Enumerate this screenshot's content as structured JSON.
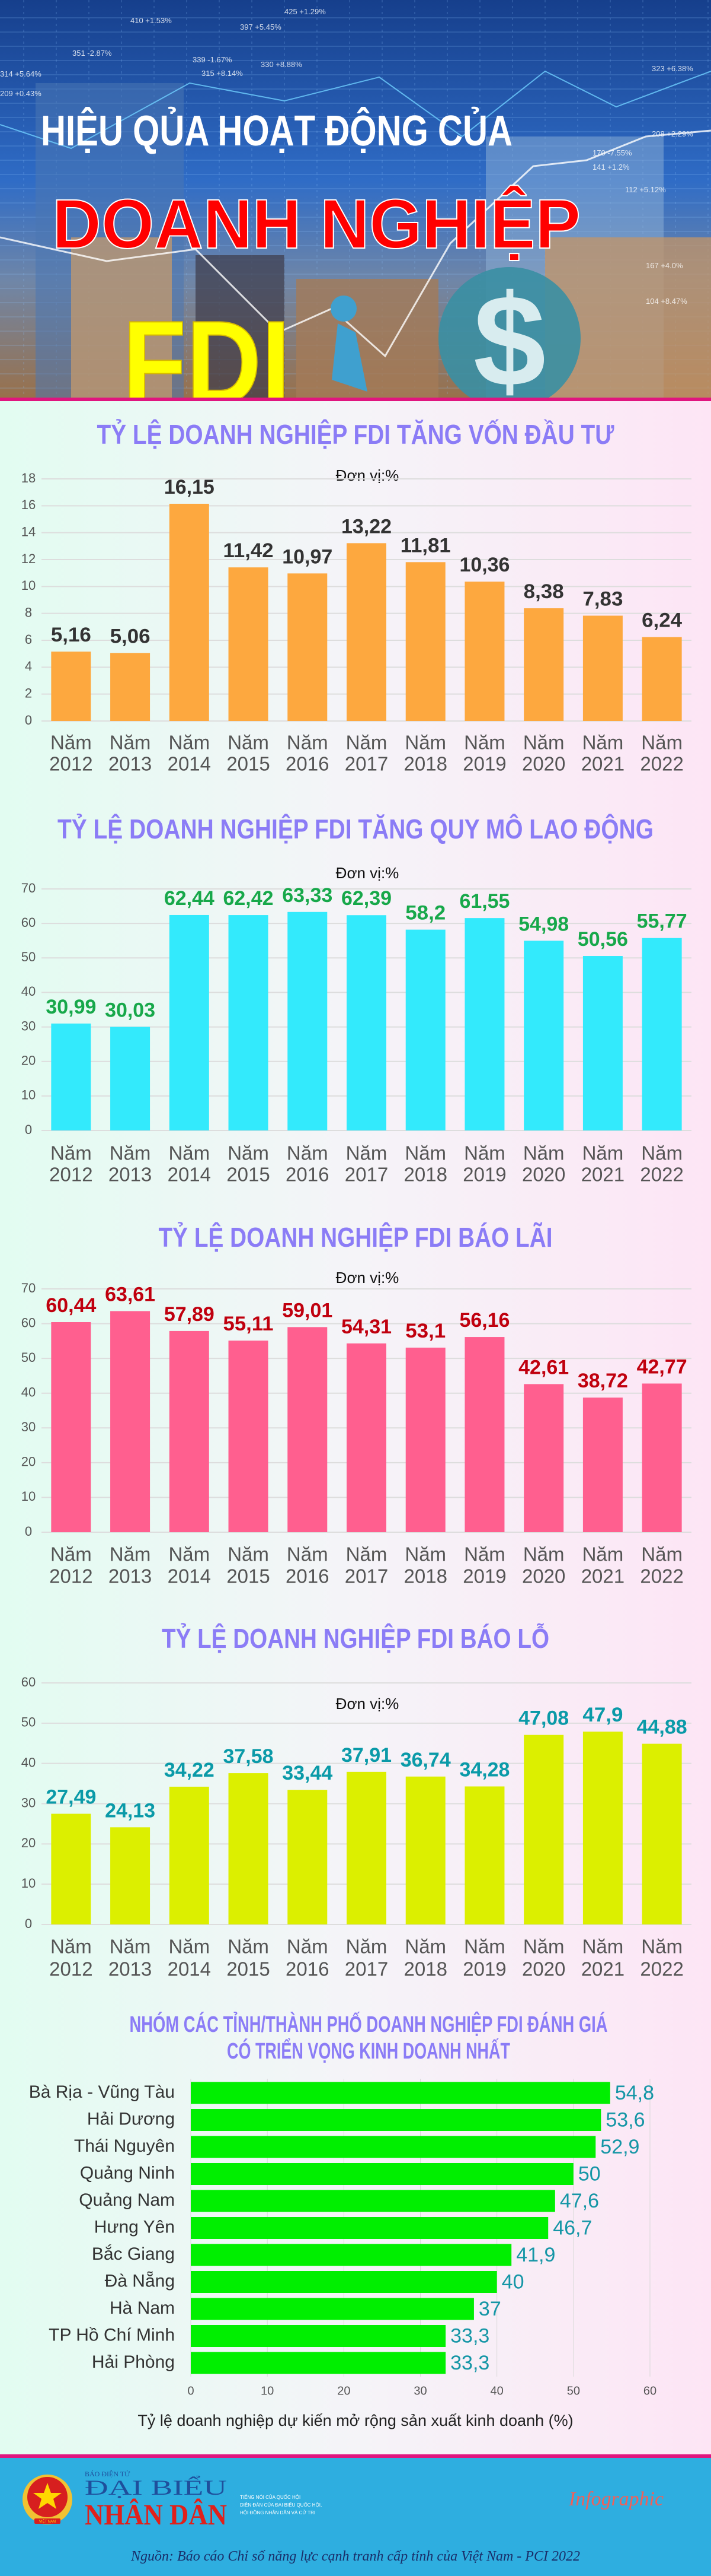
{
  "header": {
    "line1": "HIỆU QỦA HOẠT ĐỘNG CỦA",
    "line2": "DOANH NGHIỆP",
    "line3": "FDI",
    "ticker_labels": [
      "425 +1.29%",
      "410 +1.53%",
      "397 +5.45%",
      "351 -2.87%",
      "339 -1.67%",
      "330 +8.88%",
      "315 +8.14%",
      "314 +5.64%",
      "323 +6.38%",
      "209 +0.43%",
      "208 +2.29%",
      "167 +4.0%",
      "170 -7.55%",
      "141 +1.2%",
      "104 +8.47%",
      "112 +5.12%"
    ]
  },
  "chart_data": [
    {
      "type": "bar",
      "title": "TỶ LỆ DOANH NGHIỆP FDI TĂNG VỐN ĐẦU TƯ",
      "unit_note": "Đơn vị:%",
      "categories": [
        [
          "Năm",
          "2012"
        ],
        [
          "Năm",
          "2013"
        ],
        [
          "Năm",
          "2014"
        ],
        [
          "Năm",
          "2015"
        ],
        [
          "Năm",
          "2016"
        ],
        [
          "Năm",
          "2017"
        ],
        [
          "Năm",
          "2018"
        ],
        [
          "Năm",
          "2019"
        ],
        [
          "Năm",
          "2020"
        ],
        [
          "Năm",
          "2021"
        ],
        [
          "Năm",
          "2022"
        ]
      ],
      "values": [
        5.16,
        5.06,
        16.15,
        11.42,
        10.97,
        13.22,
        11.81,
        10.36,
        8.38,
        7.83,
        6.24
      ],
      "value_labels": [
        "5,16",
        "5,06",
        "16,15",
        "11,42",
        "10,97",
        "13,22",
        "11,81",
        "10,36",
        "8,38",
        "7,83",
        "6,24"
      ],
      "ylim": [
        0,
        18
      ],
      "yticks": [
        0,
        2,
        4,
        6,
        8,
        10,
        12,
        14,
        16,
        18
      ],
      "grid": true,
      "bar_color": "#fda83f",
      "label_color": "#333333"
    },
    {
      "type": "bar",
      "title": "TỶ LỆ DOANH NGHIỆP FDI TĂNG QUY MÔ LAO ĐỘNG",
      "unit_note": "Đơn vị:%",
      "categories": [
        [
          "Năm",
          "2012"
        ],
        [
          "Năm",
          "2013"
        ],
        [
          "Năm",
          "2014"
        ],
        [
          "Năm",
          "2015"
        ],
        [
          "Năm",
          "2016"
        ],
        [
          "Năm",
          "2017"
        ],
        [
          "Năm",
          "2018"
        ],
        [
          "Năm",
          "2019"
        ],
        [
          "Năm",
          "2020"
        ],
        [
          "Năm",
          "2021"
        ],
        [
          "Năm",
          "2022"
        ]
      ],
      "values": [
        30.99,
        30.03,
        62.44,
        62.42,
        63.33,
        62.39,
        58.2,
        61.55,
        54.98,
        50.56,
        55.77
      ],
      "value_labels": [
        "30,99",
        "30,03",
        "62,44",
        "62,42",
        "63,33",
        "62,39",
        "58,2",
        "61,55",
        "54,98",
        "50,56",
        "55,77"
      ],
      "ylim": [
        0,
        70
      ],
      "yticks": [
        0,
        10,
        20,
        30,
        40,
        50,
        60,
        70
      ],
      "grid": true,
      "bar_color": "#33eafc",
      "label_color": "#17a84a"
    },
    {
      "type": "bar",
      "title": "TỶ LỆ DOANH NGHIỆP FDI BÁO LÃI",
      "unit_note": "Đơn vị:%",
      "categories": [
        [
          "Năm",
          "2012"
        ],
        [
          "Năm",
          "2013"
        ],
        [
          "Năm",
          "2014"
        ],
        [
          "Năm",
          "2015"
        ],
        [
          "Năm",
          "2016"
        ],
        [
          "Năm",
          "2017"
        ],
        [
          "Năm",
          "2018"
        ],
        [
          "Năm",
          "2019"
        ],
        [
          "Năm",
          "2020"
        ],
        [
          "Năm",
          "2021"
        ],
        [
          "Năm",
          "2022"
        ]
      ],
      "values": [
        60.44,
        63.61,
        57.89,
        55.11,
        59.01,
        54.31,
        53.1,
        56.16,
        42.61,
        38.72,
        42.77
      ],
      "value_labels": [
        "60,44",
        "63,61",
        "57,89",
        "55,11",
        "59,01",
        "54,31",
        "53,1",
        "56,16",
        "42,61",
        "38,72",
        "42,77"
      ],
      "ylim": [
        0,
        70
      ],
      "yticks": [
        0,
        10,
        20,
        30,
        40,
        50,
        60,
        70
      ],
      "grid": true,
      "bar_color": "#ff5f8f",
      "label_color": "#c0000e"
    },
    {
      "type": "bar",
      "title": "TỶ LỆ DOANH NGHIỆP FDI BÁO LỖ",
      "unit_note": "Đơn vị:%",
      "categories": [
        [
          "Năm",
          "2012"
        ],
        [
          "Năm",
          "2013"
        ],
        [
          "Năm",
          "2014"
        ],
        [
          "Năm",
          "2015"
        ],
        [
          "Năm",
          "2016"
        ],
        [
          "Năm",
          "2017"
        ],
        [
          "Năm",
          "2018"
        ],
        [
          "Năm",
          "2019"
        ],
        [
          "Năm",
          "2020"
        ],
        [
          "Năm",
          "2021"
        ],
        [
          "Năm",
          "2022"
        ]
      ],
      "values": [
        27.49,
        24.13,
        34.22,
        37.58,
        33.44,
        37.91,
        36.74,
        34.28,
        47.08,
        47.9,
        44.88
      ],
      "value_labels": [
        "27,49",
        "24,13",
        "34,22",
        "37,58",
        "33,44",
        "37,91",
        "36,74",
        "34,28",
        "47,08",
        "47,9",
        "44,88"
      ],
      "ylim": [
        0,
        60
      ],
      "yticks": [
        0,
        10,
        20,
        30,
        40,
        50,
        60
      ],
      "grid": true,
      "bar_color": "#dcef00",
      "label_color": "#0a9aa8"
    },
    {
      "type": "bar",
      "orientation": "horizontal",
      "title": [
        "NHÓM CÁC TỈNH/THÀNH PHỐ DOANH NGHIỆP FDI ĐÁNH GIÁ",
        "CÓ TRIỂN VỌNG KINH DOANH NHẤT"
      ],
      "categories": [
        "Bà Rịa - Vũng Tàu",
        "Hải Dương",
        "Thái Nguyên",
        "Quảng Ninh",
        "Quảng Nam",
        "Hưng Yên",
        "Bắc Giang",
        "Đà Nẵng",
        "Hà Nam",
        "TP Hồ Chí Minh",
        "Hải Phòng"
      ],
      "values": [
        54.8,
        53.6,
        52.9,
        50,
        47.6,
        46.7,
        41.9,
        40,
        37,
        33.3,
        33.3
      ],
      "value_labels": [
        "54,8",
        "53,6",
        "52,9",
        "50",
        "47,6",
        "46,7",
        "41,9",
        "40",
        "37",
        "33,3",
        "33,3"
      ],
      "xlim": [
        0,
        60
      ],
      "xticks": [
        "0",
        "10",
        "20",
        "30",
        "40",
        "50",
        "60"
      ],
      "xlabel": "Tỷ lệ doanh nghiệp dự kiến mở rộng sản xuất kinh doanh (%)",
      "grid": true,
      "bar_color": "#00ef00",
      "label_color": "#1596a6"
    }
  ],
  "footer": {
    "logo_small": "BÁO ĐIỆN TỬ",
    "logo_line1": "ĐẠI BIỂU",
    "logo_line2": "NHÂN DÂN",
    "emblem_text": "VIỆT NAM",
    "tagline": [
      "TIẾNG NÓI CỦA QUỐC HỘI",
      "DIỄN ĐÀN CỦA ĐẠI BIỂU QUỐC HỘI,",
      "HỘI ĐỒNG NHÂN DÂN VÀ CỬ TRI"
    ],
    "badge": "Infographic",
    "source": "Nguồn: Báo cáo Chỉ số năng lực cạnh tranh cấp tỉnh của Việt Nam - PCI 2022"
  },
  "colors": {
    "title": "#8b7cf6",
    "footer_bg": "#2eaee0",
    "accent_line": "#e0157f",
    "logo_blue": "#1e4f9c",
    "logo_red": "#e0201b"
  }
}
